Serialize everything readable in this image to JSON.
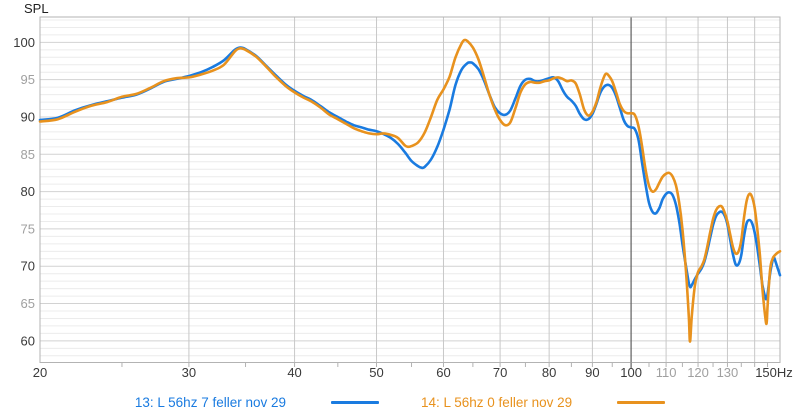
{
  "colors": {
    "trace13": "#1a7be0",
    "trace14": "#e8921e",
    "grid_minor": "#ececec",
    "grid_major": "#d2d2d2",
    "grid_vertical": "#c8c8c8",
    "grid_dark": "#5f5f5f",
    "border": "#b3b3b3",
    "label_dark": "#3a3a3a",
    "label_light": "#a0a0a0"
  },
  "legend": [
    {
      "label": "13: L 56hz 7 feller nov 29",
      "color": "#1a7be0"
    },
    {
      "label": "14: L 56hz 0 feller nov 29",
      "color": "#e8921e"
    }
  ],
  "chart_data": {
    "type": "line",
    "title": "",
    "ylabel": "SPL",
    "x_unit": "Hz",
    "x_scale": "log",
    "xlim": [
      20,
      150
    ],
    "ylim": [
      57.1,
      103.4
    ],
    "x_ticks_major": [
      20,
      30,
      40,
      50,
      60,
      70,
      80,
      90,
      100
    ],
    "x_ticks_minor_labeled": [
      110,
      120,
      130
    ],
    "x_ticks_unlabeled": [
      140
    ],
    "x_minor_ticks": [
      25,
      30,
      35,
      40,
      45,
      50,
      55,
      60,
      65,
      70,
      75,
      80,
      85,
      90,
      95,
      100,
      105,
      110,
      115,
      120,
      125,
      130,
      135,
      140,
      145
    ],
    "x_end_label": "150Hz",
    "x_dark_line": 100,
    "y_ticks": [
      60,
      65,
      70,
      75,
      80,
      85,
      90,
      95,
      100
    ],
    "grid": true,
    "legend_position": "bottom",
    "series": [
      {
        "name": "13: L 56hz 7 feller nov 29",
        "color": "#1a7be0",
        "points": [
          [
            20,
            89.6
          ],
          [
            21,
            89.9
          ],
          [
            22,
            90.9
          ],
          [
            23,
            91.6
          ],
          [
            24,
            92.1
          ],
          [
            25,
            92.6
          ],
          [
            26,
            93.0
          ],
          [
            27,
            93.8
          ],
          [
            28,
            94.7
          ],
          [
            29,
            95.1
          ],
          [
            30,
            95.5
          ],
          [
            31,
            96.0
          ],
          [
            32,
            96.7
          ],
          [
            33,
            97.6
          ],
          [
            34,
            99.0
          ],
          [
            34.5,
            99.3
          ],
          [
            35,
            99.1
          ],
          [
            36,
            98.2
          ],
          [
            37,
            96.9
          ],
          [
            38,
            95.6
          ],
          [
            39,
            94.4
          ],
          [
            40,
            93.5
          ],
          [
            41,
            92.8
          ],
          [
            42,
            92.2
          ],
          [
            43,
            91.4
          ],
          [
            44,
            90.6
          ],
          [
            45,
            90.0
          ],
          [
            46,
            89.4
          ],
          [
            47,
            88.9
          ],
          [
            48,
            88.6
          ],
          [
            49,
            88.3
          ],
          [
            50,
            88.1
          ],
          [
            51,
            87.7
          ],
          [
            52,
            87.2
          ],
          [
            53,
            86.4
          ],
          [
            54,
            85.3
          ],
          [
            55,
            84.1
          ],
          [
            56,
            83.4
          ],
          [
            56.5,
            83.2
          ],
          [
            57,
            83.3
          ],
          [
            58,
            84.3
          ],
          [
            59,
            86.0
          ],
          [
            60,
            88.3
          ],
          [
            61,
            91.0
          ],
          [
            62,
            94.3
          ],
          [
            63,
            96.3
          ],
          [
            64,
            97.2
          ],
          [
            64.5,
            97.3
          ],
          [
            65,
            97.2
          ],
          [
            66,
            96.4
          ],
          [
            67,
            94.9
          ],
          [
            68,
            93.0
          ],
          [
            69,
            91.3
          ],
          [
            70,
            90.5
          ],
          [
            71,
            90.3
          ],
          [
            72,
            90.9
          ],
          [
            73,
            92.5
          ],
          [
            74,
            94.2
          ],
          [
            75,
            95.0
          ],
          [
            76,
            95.1
          ],
          [
            77,
            94.8
          ],
          [
            78,
            94.8
          ],
          [
            79,
            95.0
          ],
          [
            80,
            95.2
          ],
          [
            81,
            95.3
          ],
          [
            82,
            94.8
          ],
          [
            83,
            93.6
          ],
          [
            84,
            92.7
          ],
          [
            85,
            92.2
          ],
          [
            86,
            91.5
          ],
          [
            87,
            90.4
          ],
          [
            88,
            89.7
          ],
          [
            89,
            89.7
          ],
          [
            90,
            90.4
          ],
          [
            91,
            91.8
          ],
          [
            92,
            93.3
          ],
          [
            93,
            94.1
          ],
          [
            94,
            94.3
          ],
          [
            95,
            93.9
          ],
          [
            96,
            92.8
          ],
          [
            97,
            91.2
          ],
          [
            98,
            89.6
          ],
          [
            99,
            88.8
          ],
          [
            100,
            88.6
          ],
          [
            101,
            88.4
          ],
          [
            102,
            87.0
          ],
          [
            103,
            84.0
          ],
          [
            104,
            81.0
          ],
          [
            105,
            78.5
          ],
          [
            106,
            77.3
          ],
          [
            107,
            77.1
          ],
          [
            108,
            77.8
          ],
          [
            109,
            79.0
          ],
          [
            110,
            79.7
          ],
          [
            111,
            79.9
          ],
          [
            112,
            79.5
          ],
          [
            113,
            78.2
          ],
          [
            114,
            76.0
          ],
          [
            115,
            73.0
          ],
          [
            116,
            70.3
          ],
          [
            117,
            67.8
          ],
          [
            117.5,
            67.2
          ],
          [
            118,
            67.5
          ],
          [
            119,
            68.3
          ],
          [
            120,
            69.0
          ],
          [
            121,
            69.6
          ],
          [
            122,
            70.5
          ],
          [
            123,
            72.0
          ],
          [
            124,
            73.8
          ],
          [
            125,
            75.5
          ],
          [
            126,
            76.7
          ],
          [
            127,
            77.2
          ],
          [
            128,
            77.3
          ],
          [
            129,
            76.8
          ],
          [
            130,
            75.6
          ],
          [
            131,
            73.5
          ],
          [
            132,
            71.5
          ],
          [
            133,
            70.2
          ],
          [
            134,
            70.3
          ],
          [
            135,
            71.5
          ],
          [
            136,
            74.0
          ],
          [
            137,
            75.8
          ],
          [
            138,
            76.2
          ],
          [
            139,
            75.8
          ],
          [
            140,
            74.5
          ],
          [
            141,
            72.5
          ],
          [
            142,
            70.0
          ],
          [
            143,
            67.5
          ],
          [
            144,
            65.9
          ],
          [
            144.5,
            65.6
          ],
          [
            145,
            66.2
          ],
          [
            146,
            69.0
          ],
          [
            147,
            70.8
          ],
          [
            147.5,
            71.2
          ],
          [
            148,
            70.8
          ],
          [
            149,
            69.8
          ],
          [
            150,
            68.8
          ]
        ]
      },
      {
        "name": "14: L 56hz 0 feller nov 29",
        "color": "#e8921e",
        "points": [
          [
            20,
            89.4
          ],
          [
            21,
            89.7
          ],
          [
            22,
            90.7
          ],
          [
            23,
            91.5
          ],
          [
            24,
            92.0
          ],
          [
            25,
            92.7
          ],
          [
            26,
            93.1
          ],
          [
            27,
            93.9
          ],
          [
            28,
            94.8
          ],
          [
            29,
            95.2
          ],
          [
            30,
            95.3
          ],
          [
            31,
            95.7
          ],
          [
            32,
            96.2
          ],
          [
            33,
            97.0
          ],
          [
            34,
            98.8
          ],
          [
            34.5,
            99.2
          ],
          [
            35,
            99.0
          ],
          [
            36,
            98.1
          ],
          [
            37,
            96.8
          ],
          [
            38,
            95.4
          ],
          [
            39,
            94.2
          ],
          [
            40,
            93.3
          ],
          [
            41,
            92.6
          ],
          [
            42,
            92.0
          ],
          [
            43,
            91.2
          ],
          [
            44,
            90.3
          ],
          [
            45,
            89.7
          ],
          [
            46,
            89.1
          ],
          [
            47,
            88.5
          ],
          [
            48,
            88.1
          ],
          [
            49,
            87.8
          ],
          [
            50,
            87.7
          ],
          [
            51,
            87.8
          ],
          [
            52,
            87.6
          ],
          [
            53,
            87.2
          ],
          [
            54,
            86.2
          ],
          [
            54.5,
            86.0
          ],
          [
            55,
            86.1
          ],
          [
            56,
            86.6
          ],
          [
            57,
            87.9
          ],
          [
            58,
            90.0
          ],
          [
            59,
            92.3
          ],
          [
            60,
            93.7
          ],
          [
            61,
            95.4
          ],
          [
            62,
            98.0
          ],
          [
            63,
            99.8
          ],
          [
            63.5,
            100.3
          ],
          [
            64,
            100.2
          ],
          [
            65,
            99.3
          ],
          [
            66,
            97.7
          ],
          [
            67,
            95.4
          ],
          [
            68,
            93.0
          ],
          [
            69,
            91.0
          ],
          [
            70,
            89.6
          ],
          [
            71,
            88.9
          ],
          [
            72,
            89.3
          ],
          [
            73,
            91.2
          ],
          [
            74,
            93.3
          ],
          [
            75,
            94.4
          ],
          [
            76,
            94.7
          ],
          [
            77,
            94.6
          ],
          [
            78,
            94.6
          ],
          [
            79,
            94.8
          ],
          [
            80,
            94.9
          ],
          [
            81,
            95.2
          ],
          [
            82,
            95.3
          ],
          [
            83,
            95.1
          ],
          [
            84,
            94.8
          ],
          [
            85,
            94.9
          ],
          [
            86,
            94.5
          ],
          [
            87,
            93.0
          ],
          [
            88,
            91.0
          ],
          [
            89,
            90.2
          ],
          [
            90,
            90.7
          ],
          [
            91,
            92.0
          ],
          [
            92,
            94.0
          ],
          [
            93,
            95.5
          ],
          [
            93.5,
            95.8
          ],
          [
            94,
            95.6
          ],
          [
            95,
            94.8
          ],
          [
            96,
            93.3
          ],
          [
            97,
            91.7
          ],
          [
            98,
            90.8
          ],
          [
            99,
            90.5
          ],
          [
            100,
            90.5
          ],
          [
            101,
            90.3
          ],
          [
            102,
            88.8
          ],
          [
            103,
            86.2
          ],
          [
            104,
            83.0
          ],
          [
            105,
            80.8
          ],
          [
            106,
            80.0
          ],
          [
            107,
            80.3
          ],
          [
            108,
            81.2
          ],
          [
            109,
            82.0
          ],
          [
            110,
            82.4
          ],
          [
            111,
            82.5
          ],
          [
            112,
            82.0
          ],
          [
            113,
            80.8
          ],
          [
            114,
            78.5
          ],
          [
            115,
            75.0
          ],
          [
            116,
            70.0
          ],
          [
            117,
            63.5
          ],
          [
            117.4,
            59.9
          ],
          [
            118,
            63.5
          ],
          [
            119,
            67.5
          ],
          [
            120,
            69.2
          ],
          [
            121,
            69.9
          ],
          [
            122,
            70.8
          ],
          [
            123,
            72.5
          ],
          [
            124,
            74.5
          ],
          [
            125,
            76.3
          ],
          [
            126,
            77.5
          ],
          [
            127,
            78.0
          ],
          [
            128,
            78.0
          ],
          [
            129,
            77.2
          ],
          [
            130,
            76.0
          ],
          [
            131,
            74.2
          ],
          [
            132,
            72.5
          ],
          [
            133,
            71.7
          ],
          [
            134,
            72.0
          ],
          [
            135,
            73.5
          ],
          [
            136,
            76.5
          ],
          [
            137,
            78.8
          ],
          [
            138,
            79.7
          ],
          [
            139,
            79.3
          ],
          [
            140,
            77.8
          ],
          [
            141,
            75.0
          ],
          [
            142,
            71.5
          ],
          [
            143,
            67.0
          ],
          [
            144,
            63.5
          ],
          [
            144.6,
            62.3
          ],
          [
            145,
            64.5
          ],
          [
            146,
            69.5
          ],
          [
            147,
            71.0
          ],
          [
            148,
            71.5
          ],
          [
            149,
            71.8
          ],
          [
            150,
            72.0
          ]
        ]
      }
    ]
  }
}
